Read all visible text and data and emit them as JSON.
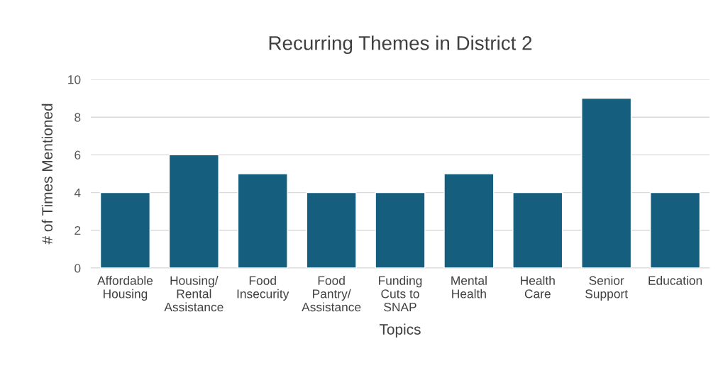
{
  "chart_data": {
    "type": "bar",
    "title": "Recurring Themes in District 2",
    "xlabel": "Topics",
    "ylabel": "# of Times Mentioned",
    "categories": [
      "Affordable\nHousing",
      "Housing/\nRental\nAssistance",
      "Food\nInsecurity",
      "Food\nPantry/\nAssistance",
      "Funding\nCuts to\nSNAP",
      "Mental\nHealth",
      "Health\nCare",
      "Senior\nSupport",
      "Education"
    ],
    "values": [
      4,
      6,
      5,
      4,
      4,
      5,
      4,
      9,
      4
    ],
    "color": "#155e7e",
    "ylim": [
      0,
      10
    ],
    "yticks": [
      0,
      2,
      4,
      6,
      8,
      10
    ],
    "grid": "y",
    "legend": false
  }
}
